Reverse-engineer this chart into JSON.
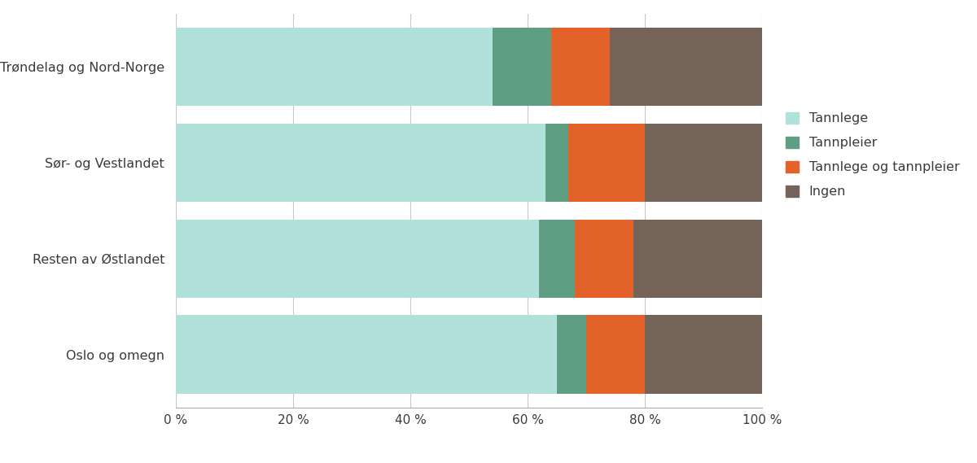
{
  "categories": [
    "Oslo og omegn",
    "Resten av Østlandet",
    "Sør- og Vestlandet",
    "Trøndelag og Nord-Norge"
  ],
  "series": {
    "Tannlege": [
      65,
      62,
      63,
      54
    ],
    "Tannpleier": [
      5,
      6,
      4,
      10
    ],
    "Tannlege og tannpleier": [
      10,
      10,
      13,
      10
    ],
    "Ingen": [
      20,
      22,
      20,
      26
    ]
  },
  "colors": {
    "Tannlege": "#b2e0db",
    "Tannpleier": "#5f9e82",
    "Tannlege og tannpleier": "#e2622a",
    "Ingen": "#736358"
  },
  "xlim": [
    0,
    100
  ],
  "xticks": [
    0,
    20,
    40,
    60,
    80,
    100
  ],
  "xticklabels": [
    "0 %",
    "20 %",
    "40 %",
    "60 %",
    "80 %",
    "100 %"
  ],
  "background_color": "#ffffff",
  "bar_height": 0.82,
  "legend_labels": [
    "Tannlege",
    "Tannpleier",
    "Tannlege og tannpleier",
    "Ingen"
  ]
}
